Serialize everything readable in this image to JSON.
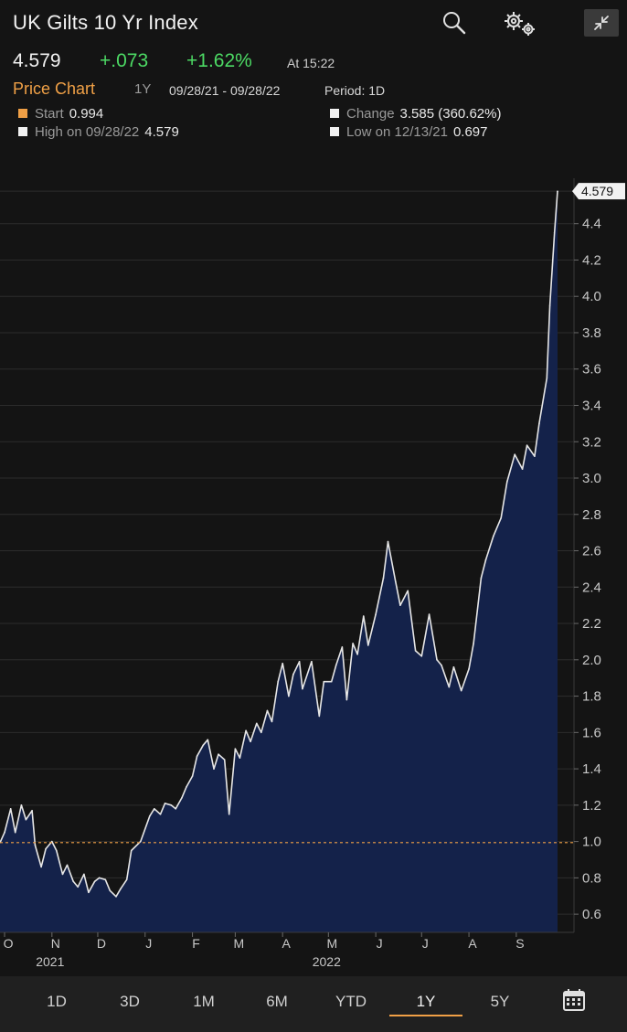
{
  "header": {
    "title": "UK Gilts 10 Yr Index",
    "last": "4.579",
    "change": "+.073",
    "change_pct": "+1.62%",
    "time": "At 15:22"
  },
  "chart_bar": {
    "title": "Price Chart",
    "range": "1Y",
    "dates": "09/28/21 - 09/28/22",
    "period": "Period: 1D"
  },
  "stats": {
    "start_label": "Start",
    "start_value": "0.994",
    "change_label": "Change",
    "change_value": "3.585 (360.62%)",
    "high_label": "High on 09/28/22",
    "high_value": "4.579",
    "low_label": "Low on 12/13/21",
    "low_value": "0.697"
  },
  "range_buttons": [
    "1D",
    "3D",
    "1M",
    "6M",
    "YTD",
    "1Y",
    "5Y"
  ],
  "active_range": "1Y",
  "colors": {
    "accent": "#f0a046",
    "positive": "#4cd964",
    "area_fill": "#14224a",
    "line": "#e6e6e6"
  },
  "icons": [
    "search-icon",
    "gear-icon",
    "minimize-icon",
    "calendar-icon"
  ],
  "chart_data": {
    "type": "area",
    "title": "UK Gilts 10 Yr Index",
    "ylim": [
      0.5,
      4.65
    ],
    "y_ticks": [
      0.6,
      0.8,
      1.0,
      1.2,
      1.4,
      1.6,
      1.8,
      2.0,
      2.2,
      2.4,
      2.6,
      2.8,
      3.0,
      3.2,
      3.4,
      3.6,
      3.8,
      4.0,
      4.2,
      4.4
    ],
    "y_tick_labels": [
      "0.6",
      "0.8",
      "1.0",
      "1.2",
      "1.4",
      "1.6",
      "1.8",
      "2.0",
      "2.2",
      "2.4",
      "2.6",
      "2.8",
      "3.0",
      "3.2",
      "3.4",
      "3.6",
      "3.8",
      "4.0",
      "4.2",
      "4.4"
    ],
    "x_tick_labels": [
      "O",
      "N",
      "D",
      "J",
      "F",
      "M",
      "A",
      "M",
      "J",
      "J",
      "A",
      "S"
    ],
    "x_tick_dates": [
      "2021-10-01",
      "2021-11-01",
      "2021-12-01",
      "2022-01-01",
      "2022-02-01",
      "2022-03-01",
      "2022-04-01",
      "2022-05-01",
      "2022-06-01",
      "2022-07-01",
      "2022-08-01",
      "2022-09-01"
    ],
    "year_labels": [
      {
        "label": "2021",
        "date": "2021-11-01"
      },
      {
        "label": "2022",
        "date": "2022-05-01"
      }
    ],
    "reference_line": {
      "value": 0.994,
      "style": "dashed",
      "color": "#f0a046"
    },
    "last_value_label": "4.579",
    "grid": true,
    "series": [
      {
        "x": [
          "2021-09-28",
          "2021-10-01",
          "2021-10-05",
          "2021-10-08",
          "2021-10-12",
          "2021-10-15",
          "2021-10-19",
          "2021-10-21",
          "2021-10-25",
          "2021-10-28",
          "2021-11-01",
          "2021-11-04",
          "2021-11-08",
          "2021-11-11",
          "2021-11-15",
          "2021-11-18",
          "2021-11-22",
          "2021-11-25",
          "2021-11-29",
          "2021-12-02",
          "2021-12-06",
          "2021-12-09",
          "2021-12-13",
          "2021-12-16",
          "2021-12-20",
          "2021-12-23",
          "2021-12-29",
          "2022-01-04",
          "2022-01-07",
          "2022-01-11",
          "2022-01-14",
          "2022-01-18",
          "2022-01-21",
          "2022-01-25",
          "2022-01-28",
          "2022-02-01",
          "2022-02-04",
          "2022-02-08",
          "2022-02-11",
          "2022-02-15",
          "2022-02-18",
          "2022-02-22",
          "2022-02-25",
          "2022-03-01",
          "2022-03-04",
          "2022-03-08",
          "2022-03-11",
          "2022-03-15",
          "2022-03-18",
          "2022-03-22",
          "2022-03-25",
          "2022-03-29",
          "2022-04-01",
          "2022-04-05",
          "2022-04-08",
          "2022-04-12",
          "2022-04-14",
          "2022-04-20",
          "2022-04-25",
          "2022-04-28",
          "2022-05-03",
          "2022-05-06",
          "2022-05-10",
          "2022-05-13",
          "2022-05-17",
          "2022-05-20",
          "2022-05-24",
          "2022-05-27",
          "2022-06-01",
          "2022-06-06",
          "2022-06-09",
          "2022-06-14",
          "2022-06-17",
          "2022-06-22",
          "2022-06-27",
          "2022-07-01",
          "2022-07-06",
          "2022-07-11",
          "2022-07-14",
          "2022-07-19",
          "2022-07-22",
          "2022-07-27",
          "2022-08-01",
          "2022-08-04",
          "2022-08-09",
          "2022-08-12",
          "2022-08-17",
          "2022-08-22",
          "2022-08-26",
          "2022-08-31",
          "2022-09-05",
          "2022-09-08",
          "2022-09-13",
          "2022-09-16",
          "2022-09-21",
          "2022-09-23",
          "2022-09-26",
          "2022-09-28"
        ],
        "y": [
          0.994,
          1.05,
          1.18,
          1.05,
          1.2,
          1.12,
          1.17,
          0.98,
          0.86,
          0.96,
          1.0,
          0.95,
          0.82,
          0.87,
          0.78,
          0.75,
          0.82,
          0.72,
          0.78,
          0.8,
          0.79,
          0.73,
          0.697,
          0.74,
          0.79,
          0.95,
          1.0,
          1.14,
          1.18,
          1.15,
          1.21,
          1.2,
          1.18,
          1.24,
          1.3,
          1.36,
          1.47,
          1.53,
          1.56,
          1.4,
          1.48,
          1.45,
          1.15,
          1.51,
          1.46,
          1.61,
          1.55,
          1.65,
          1.6,
          1.72,
          1.66,
          1.88,
          1.98,
          1.8,
          1.92,
          1.99,
          1.84,
          1.99,
          1.69,
          1.88,
          1.88,
          1.97,
          2.07,
          1.78,
          2.09,
          2.03,
          2.24,
          2.08,
          2.25,
          2.45,
          2.65,
          2.43,
          2.3,
          2.38,
          2.05,
          2.02,
          2.25,
          2.0,
          1.97,
          1.85,
          1.96,
          1.83,
          1.95,
          2.09,
          2.45,
          2.55,
          2.68,
          2.78,
          2.98,
          3.13,
          3.05,
          3.18,
          3.12,
          3.3,
          3.55,
          3.95,
          4.35,
          4.579
        ]
      }
    ]
  }
}
